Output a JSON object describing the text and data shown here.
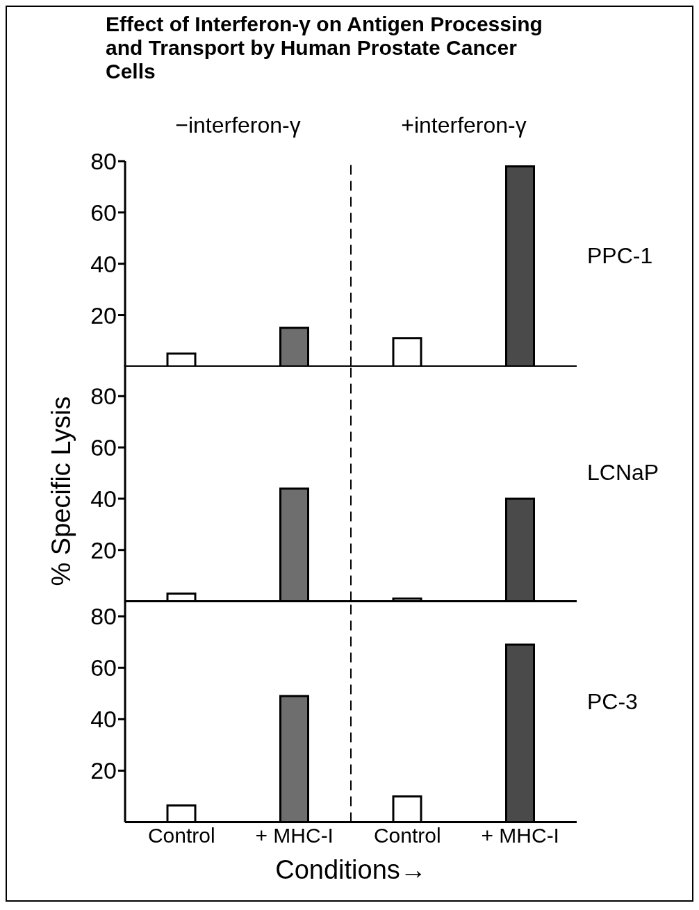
{
  "chart_data": [
    {
      "type": "bar",
      "title": "Effect of Interferon-γ on Antigen Processing and Transport by Human Prostate Cancer Cells",
      "annotations": [
        "−interferon-γ",
        "+interferon-γ",
        "PPC-1"
      ],
      "categories": [
        null,
        null,
        null,
        null
      ],
      "values": [
        5,
        15,
        11,
        78
      ],
      "colors": [
        "#ffffff",
        "#6e6e6e",
        "#ffffff",
        "#4a4a4a"
      ],
      "ylim": [
        0,
        80
      ],
      "yticks": [
        20,
        40,
        60,
        80
      ],
      "tick_labels": "y"
    },
    {
      "type": "bar",
      "ylabel": "% Specific Lysis",
      "annotations": [
        "LCNaP"
      ],
      "categories": [
        null,
        null,
        null,
        null
      ],
      "values": [
        3,
        44,
        1,
        40
      ],
      "colors": [
        "#ffffff",
        "#6e6e6e",
        "#ffffff",
        "#4a4a4a"
      ],
      "ylim": [
        0,
        92
      ],
      "yticks": [
        20,
        40,
        60,
        80
      ],
      "tick_labels": "y"
    },
    {
      "type": "bar",
      "xlabel": "Conditions→",
      "annotations": [
        "PC-3"
      ],
      "categories": [
        "Control",
        "+ MHC-I",
        "Control",
        "+ MHC-I"
      ],
      "values": [
        6.5,
        49,
        10,
        69
      ],
      "colors": [
        "#ffffff",
        "#6e6e6e",
        "#ffffff",
        "#4a4a4a"
      ],
      "ylim": [
        0,
        86
      ],
      "yticks": [
        20,
        40,
        60,
        80
      ]
    }
  ]
}
